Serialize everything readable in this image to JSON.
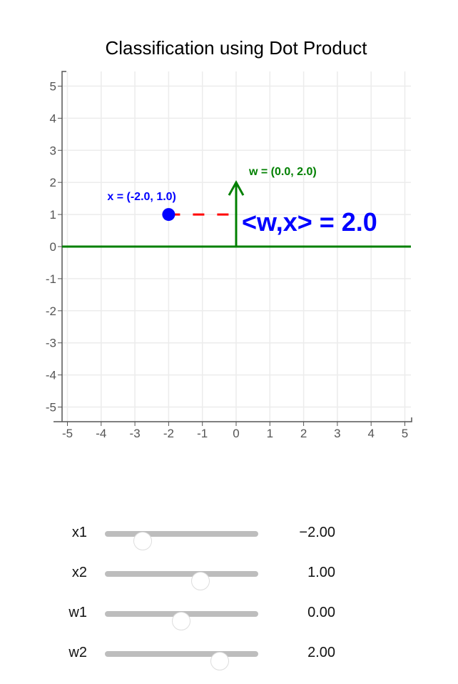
{
  "chart_data": {
    "type": "scatter",
    "title": "Classification using Dot Product",
    "xlim": [
      -5,
      5
    ],
    "ylim": [
      -5,
      5
    ],
    "xticks": [
      "-5",
      "-4",
      "-3",
      "-2",
      "-1",
      "0",
      "1",
      "2",
      "3",
      "4",
      "5"
    ],
    "yticks": [
      "5",
      "4",
      "3",
      "2",
      "1",
      "0",
      "-1",
      "-2",
      "-3",
      "-4",
      "-5"
    ],
    "grid": true,
    "point_x": {
      "x": -2.0,
      "y": 1.0,
      "label": "x = (-2.0, 1.0)",
      "color": "#0000ff"
    },
    "vector_w": {
      "x": 0.0,
      "y": 2.0,
      "label": "w = (0.0, 2.0)",
      "color": "#008000"
    },
    "projection_color": "#ff0000",
    "dot_product_label": "<w,x> = 2.0"
  },
  "sliders": [
    {
      "label": "x1",
      "value": -2.0,
      "display": "−2.00",
      "min": -4,
      "max": 4
    },
    {
      "label": "x2",
      "value": 1.0,
      "display": "1.00",
      "min": -4,
      "max": 4
    },
    {
      "label": "w1",
      "value": 0.0,
      "display": "0.00",
      "min": -4,
      "max": 4
    },
    {
      "label": "w2",
      "value": 2.0,
      "display": "2.00",
      "min": -4,
      "max": 4
    }
  ]
}
